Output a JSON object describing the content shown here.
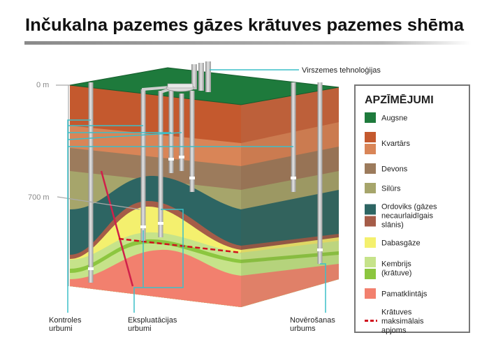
{
  "title": "Inčukalna pazemes gāzes krātuves pazemes shēma",
  "depth_labels": [
    "0 m",
    "700 m"
  ],
  "callouts": {
    "surface": [
      "Virszemes tehnoloģijas"
    ],
    "control_wells": [
      "Kontroles",
      "urbumi"
    ],
    "production_wells": [
      "Ekspluatācijas",
      "urbumi"
    ],
    "observation_well": [
      "Novērošanas",
      "urbums"
    ]
  },
  "legend": {
    "title": "APZĪMĒJUMI",
    "items": [
      {
        "label_lines": [
          "Augsne"
        ],
        "colors": [
          "#1e7a3c"
        ],
        "marker": "box"
      },
      {
        "label_lines": [
          "Kvartārs"
        ],
        "colors": [
          "#c4592e",
          "#d98557"
        ],
        "marker": "box"
      },
      {
        "label_lines": [
          "Devons"
        ],
        "colors": [
          "#9c7b5c"
        ],
        "marker": "box"
      },
      {
        "label_lines": [
          "Silūrs"
        ],
        "colors": [
          "#a6a56b"
        ],
        "marker": "box"
      },
      {
        "label_lines": [
          "Ordoviks (gāzes",
          "necaurlaidīgais",
          "slānis)"
        ],
        "colors": [
          "#2d6563",
          "#a55c48"
        ],
        "marker": "box"
      },
      {
        "label_lines": [
          "Dabasgāze"
        ],
        "colors": [
          "#f4f06e"
        ],
        "marker": "box"
      },
      {
        "label_lines": [
          "Kembrijs",
          "(krātuve)"
        ],
        "colors": [
          "#c6e38a",
          "#8cc63f"
        ],
        "marker": "box"
      },
      {
        "label_lines": [
          "Pamatklintājs"
        ],
        "colors": [
          "#f2806e"
        ],
        "marker": "box"
      },
      {
        "label_lines": [
          "Krātuves",
          "maksimālais",
          "apjoms"
        ],
        "colors": [
          "#d0101e"
        ],
        "marker": "dashed-line"
      }
    ]
  }
}
